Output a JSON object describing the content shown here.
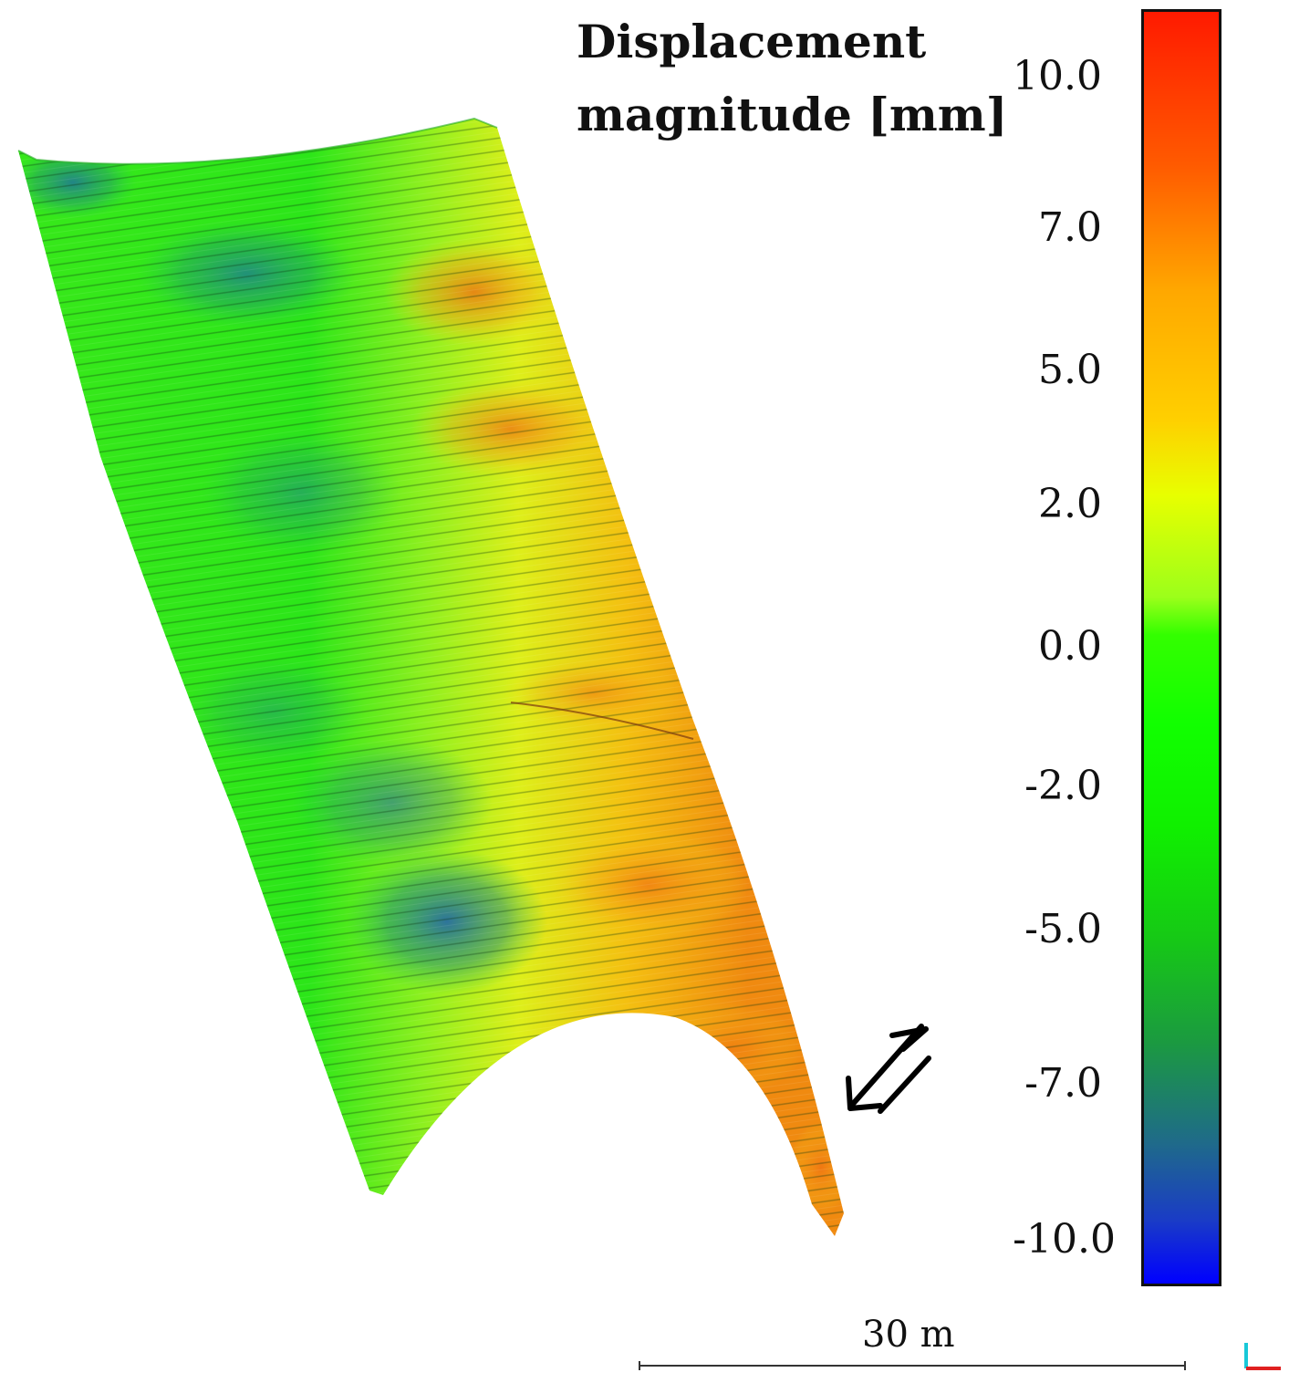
{
  "title": {
    "line1": "Displacement",
    "line2": "magnitude [mm]"
  },
  "colorbar": {
    "ticks": [
      "10.0",
      "7.0",
      "5.0",
      "2.0",
      "0.0",
      "-2.0",
      "-5.0",
      "-7.0",
      "-10.0"
    ],
    "max": 10.0,
    "min": -10.0,
    "colors": {
      "high": "#ff1a00",
      "mid_high": "#ffa800",
      "mid": "#e8ff00",
      "zero": "#22ff00",
      "mid_low": "#1b9a40",
      "low": "#0000ff"
    }
  },
  "scale_bar": {
    "label": "30 m"
  },
  "icons": {
    "direction": "double-arrow-icon",
    "axis": "axis-indicator-icon"
  }
}
